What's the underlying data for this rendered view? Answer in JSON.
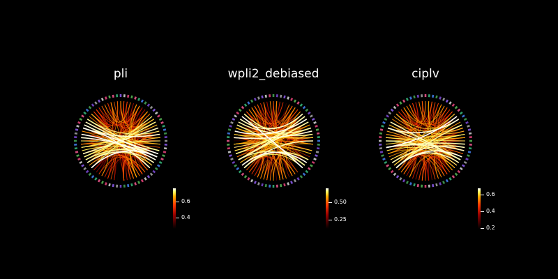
{
  "chart_data": [
    {
      "type": "connectivity-circle",
      "title": "pli",
      "colorbar": {
        "ticks": [
          0.4,
          0.6
        ],
        "labels": [
          "0.4",
          "0.6"
        ],
        "vmin": 0.27,
        "vmax": 0.76
      },
      "nodes": 76,
      "background": "#000000"
    },
    {
      "type": "connectivity-circle",
      "title": "wpli2_debiased",
      "colorbar": {
        "ticks": [
          0.25,
          0.5
        ],
        "labels": [
          "0.25",
          "0.50"
        ],
        "vmin": 0.12,
        "vmax": 0.6
      },
      "nodes": 76,
      "background": "#000000"
    },
    {
      "type": "connectivity-circle",
      "title": "ciplv",
      "colorbar": {
        "ticks": [
          0.2,
          0.4,
          0.6
        ],
        "labels": [
          "0.2",
          "0.4",
          "0.6"
        ],
        "vmin": 0.14,
        "vmax": 0.68
      },
      "nodes": 76,
      "background": "#000000"
    }
  ],
  "colormap": [
    "#000000",
    "#9a0000",
    "#ff3a00",
    "#ffb000",
    "#ffff66",
    "#ffffff"
  ]
}
